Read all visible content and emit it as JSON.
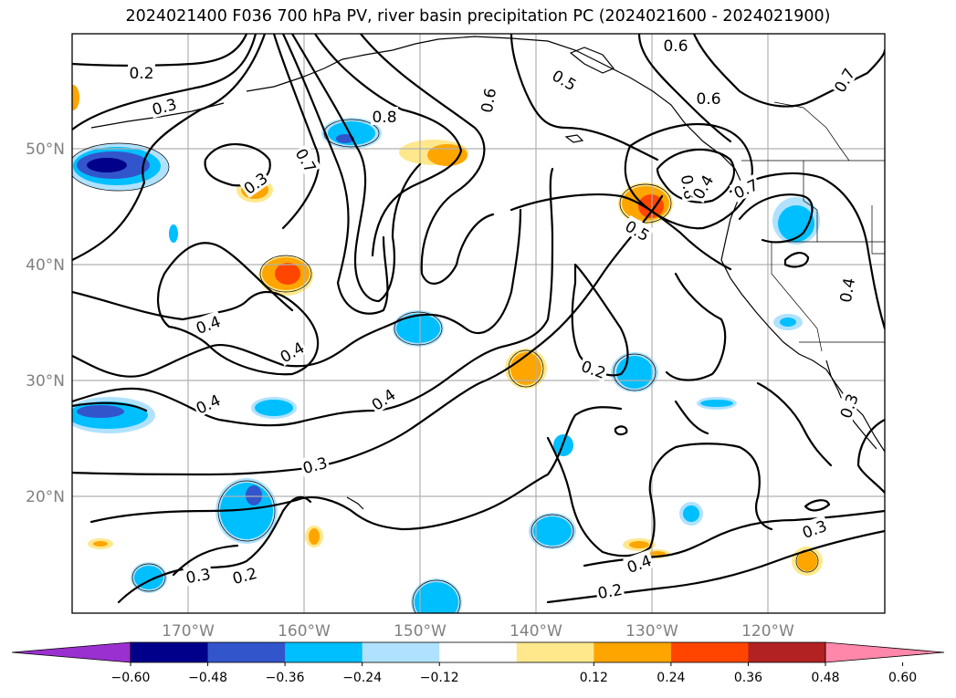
{
  "title": "2024021400 F036 700 hPa PV, river basin precipitation PC (2024021600 - 2024021900)",
  "map": {
    "lon_labels": [
      "170°W",
      "160°W",
      "150°W",
      "140°W",
      "130°W",
      "120°W"
    ],
    "lat_labels": [
      "50°N",
      "40°N",
      "30°N",
      "20°N"
    ]
  },
  "contour_labels": [
    "0.2",
    "0.3",
    "0.8",
    "0.7",
    "0.3",
    "0.4",
    "0.4",
    "0.4",
    "0.4",
    "0.3",
    "0.3",
    "0.2",
    "0.6",
    "0.5",
    "0.6",
    "0.6",
    "0.7",
    "0.8",
    "0.7",
    "0.5",
    "0.2",
    "0.4",
    "0.3",
    "0.4",
    "0.3",
    "0.2",
    "0.4"
  ],
  "colorbar": {
    "ticks": [
      "−0.60",
      "−0.48",
      "−0.36",
      "−0.24",
      "−0.12",
      "0.12",
      "0.24",
      "0.36",
      "0.48",
      "0.60"
    ],
    "colors": [
      "#9b30d0",
      "#00008b",
      "#3355cc",
      "#00bfff",
      "#b0e2ff",
      "#ffffff",
      "#ffe88c",
      "#ffa500",
      "#ff4500",
      "#b22222",
      "#ff88aa"
    ]
  }
}
